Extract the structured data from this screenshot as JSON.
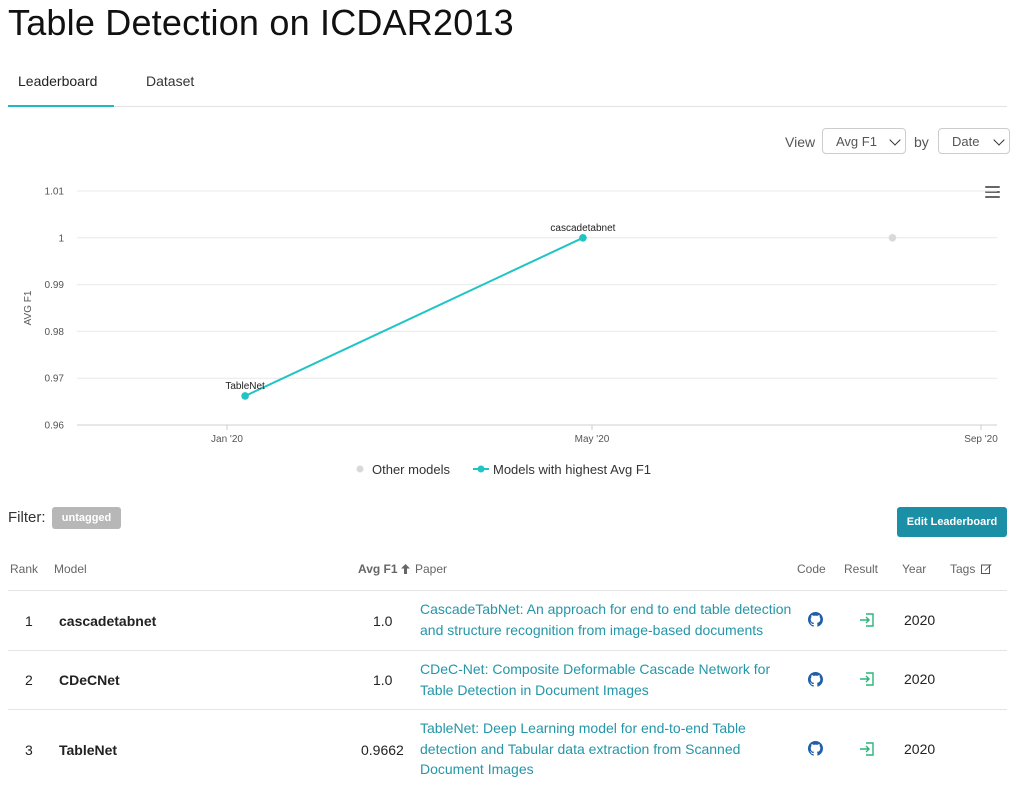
{
  "page_title": "Table Detection on ICDAR2013",
  "tabs": [
    {
      "label": "Leaderboard",
      "active": true
    },
    {
      "label": "Dataset",
      "active": false
    }
  ],
  "controls": {
    "view_label": "View",
    "view_value": "Avg F1",
    "by_label": "by",
    "by_value": "Date"
  },
  "chart_data": {
    "type": "line",
    "ylabel": "AVG F1",
    "ylim": [
      0.96,
      1.01
    ],
    "y_ticks": [
      "1.01",
      "1",
      "0.99",
      "0.98",
      "0.97",
      "0.96"
    ],
    "x_ticks": [
      "Jan '20",
      "May '20",
      "Sep '20"
    ],
    "grid": true,
    "legend": {
      "position": "bottom",
      "items": [
        "Other models",
        "Models with highest Avg F1"
      ]
    },
    "series": [
      {
        "name": "Models with highest Avg F1",
        "color": "#21c4c4",
        "points": [
          {
            "x": "2020-01-07",
            "y": 0.9662,
            "label": "TableNet"
          },
          {
            "x": "2020-04-28",
            "y": 1.0,
            "label": "cascadetabnet"
          }
        ]
      },
      {
        "name": "Other models",
        "color": "#d9d9d9",
        "points": [
          {
            "x": "2020-08-04",
            "y": 1.0
          }
        ]
      }
    ]
  },
  "filter": {
    "label": "Filter:",
    "tag": "untagged"
  },
  "edit_button": "Edit Leaderboard",
  "table": {
    "headers": {
      "rank": "Rank",
      "model": "Model",
      "metric": "Avg F1",
      "paper": "Paper",
      "code": "Code",
      "result": "Result",
      "year": "Year",
      "tags": "Tags"
    },
    "rows": [
      {
        "rank": "1",
        "model": "cascadetabnet",
        "score": "1.0",
        "paper": "CascadeTabNet: An approach for end to end table detection and structure recognition from image-based documents",
        "year": "2020"
      },
      {
        "rank": "2",
        "model": "CDeCNet",
        "score": "1.0",
        "paper": "CDeC-Net: Composite Deformable Cascade Network for Table Detection in Document Images",
        "year": "2020"
      },
      {
        "rank": "3",
        "model": "TableNet",
        "score": "0.9662",
        "paper": "TableNet: Deep Learning model for end-to-end Table detection and Tabular data extraction from Scanned Document Images",
        "year": "2020"
      }
    ]
  },
  "icons": {
    "code": "github-icon",
    "result": "result-link-icon",
    "tags": "edit-icon",
    "sort": "sort-arrow-up-icon",
    "menu": "hamburger-menu-icon"
  }
}
